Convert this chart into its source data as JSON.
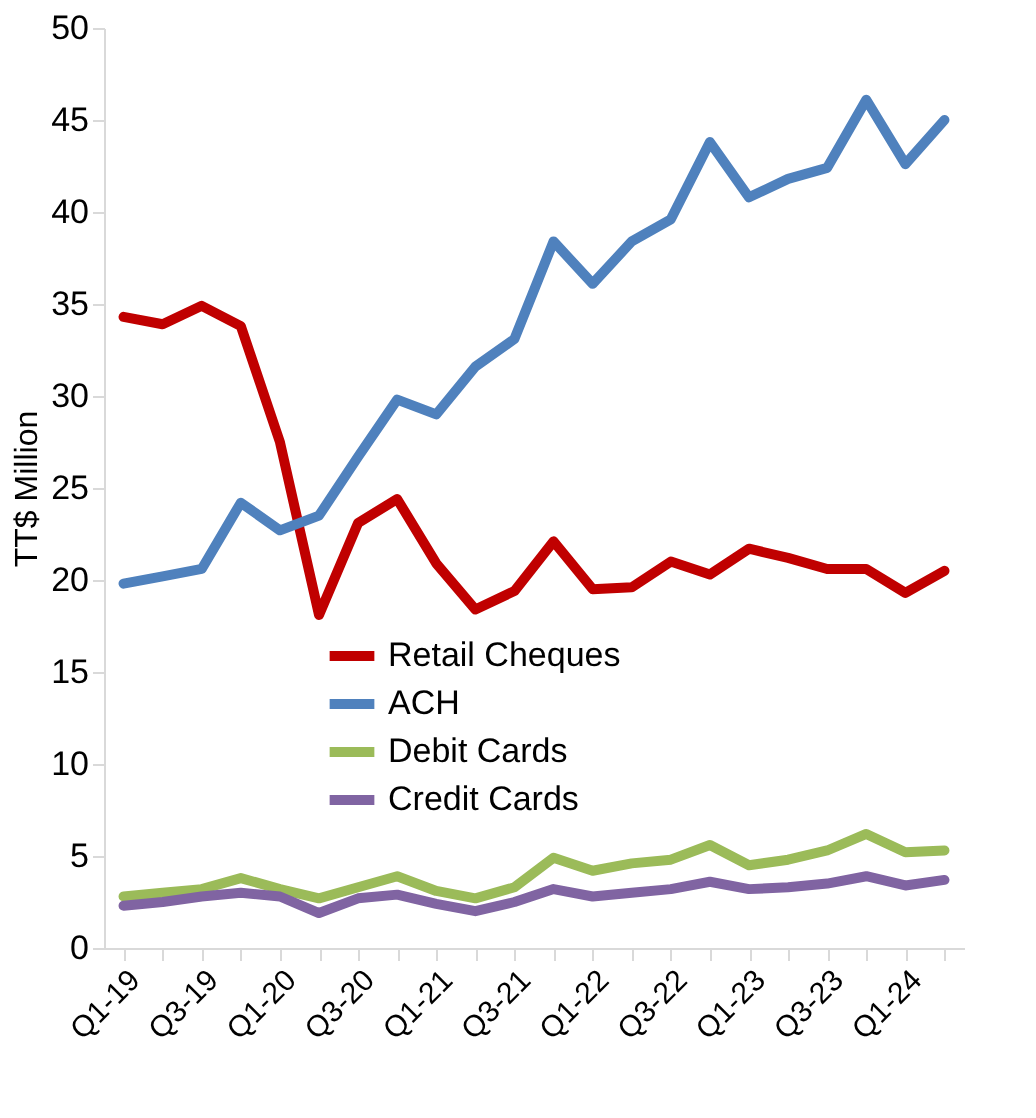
{
  "chart_data": {
    "type": "line",
    "ylabel": "TT$ Million",
    "categories": [
      "Q1-19",
      null,
      "Q3-19",
      null,
      "Q1-20",
      null,
      "Q3-20",
      null,
      "Q1-21",
      null,
      "Q3-21",
      null,
      "Q1-22",
      null,
      "Q3-22",
      null,
      "Q1-23",
      null,
      "Q3-23",
      null,
      "Q1-24",
      null
    ],
    "series": [
      {
        "name": "Retail Cheques",
        "color": "#c00000",
        "values": [
          34.3,
          33.9,
          34.9,
          33.8,
          27.5,
          18.1,
          23.1,
          24.4,
          20.9,
          18.4,
          19.4,
          22.1,
          19.5,
          19.6,
          21.0,
          20.3,
          21.7,
          21.2,
          20.6,
          20.6,
          19.3,
          20.5
        ]
      },
      {
        "name": "ACH",
        "color": "#4f81bd",
        "values": [
          19.8,
          20.2,
          20.6,
          24.2,
          22.7,
          23.5,
          26.7,
          29.8,
          29.0,
          31.6,
          33.1,
          38.4,
          36.1,
          38.4,
          39.6,
          43.8,
          40.8,
          41.8,
          42.4,
          46.1,
          42.6,
          45.0
        ]
      },
      {
        "name": "Debit Cards",
        "color": "#9bbb59",
        "values": [
          2.8,
          3.0,
          3.2,
          3.8,
          3.2,
          2.7,
          3.3,
          3.9,
          3.1,
          2.7,
          3.3,
          4.9,
          4.2,
          4.6,
          4.8,
          5.6,
          4.5,
          4.8,
          5.3,
          6.2,
          5.2,
          5.3
        ]
      },
      {
        "name": "Credit Cards",
        "color": "#8064a2",
        "values": [
          2.3,
          2.5,
          2.8,
          3.0,
          2.8,
          1.9,
          2.7,
          2.9,
          2.4,
          2.0,
          2.5,
          3.2,
          2.8,
          3.0,
          3.2,
          3.6,
          3.2,
          3.3,
          3.5,
          3.9,
          3.4,
          3.7
        ]
      }
    ],
    "ylim": [
      0,
      50
    ],
    "yticks": [
      0,
      5,
      10,
      15,
      20,
      25,
      30,
      35,
      40,
      45,
      50
    ],
    "grid": false,
    "legend": "bottom",
    "marker": "none",
    "line_style": "solid"
  }
}
